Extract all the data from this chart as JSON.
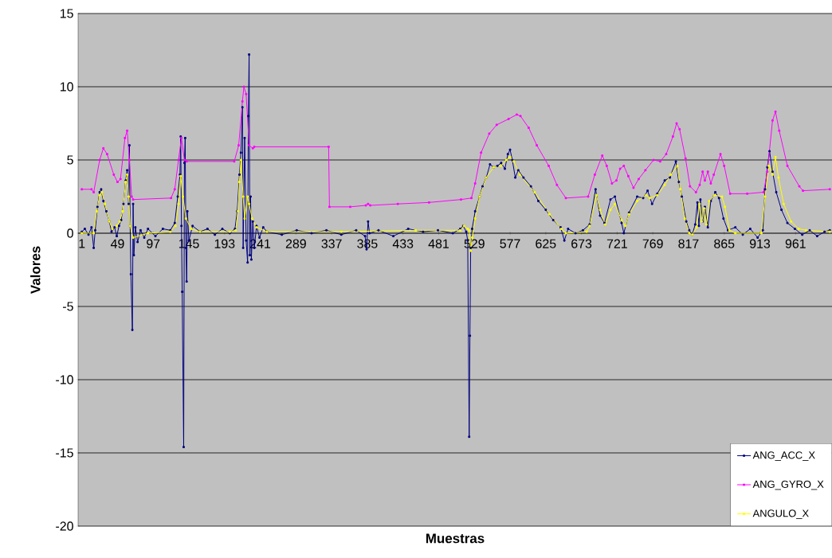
{
  "chart_data": {
    "type": "line",
    "xlabel": "Muestras",
    "ylabel": "Valores",
    "xlim": [
      -4,
      1010
    ],
    "ylim": [
      -20,
      15
    ],
    "xticks": [
      1,
      49,
      97,
      145,
      193,
      241,
      289,
      337,
      385,
      433,
      481,
      529,
      577,
      625,
      673,
      721,
      769,
      817,
      865,
      913,
      961
    ],
    "yticks": [
      -20,
      -15,
      -10,
      -5,
      0,
      5,
      10,
      15
    ],
    "grid": "y",
    "legend": "bottom right",
    "marker": "square",
    "series": [
      {
        "name": "ANG_ACC_X",
        "color": "#000080",
        "x": [
          1,
          5,
          10,
          14,
          17,
          19,
          22,
          25,
          27,
          30,
          34,
          38,
          41,
          45,
          48,
          51,
          54,
          57,
          60,
          62,
          64,
          65,
          66,
          67,
          69,
          70,
          71,
          73,
          76,
          80,
          85,
          90,
          100,
          110,
          120,
          126,
          130,
          133,
          134,
          135,
          136,
          138,
          139,
          140,
          141,
          142,
          143,
          145,
          150,
          160,
          170,
          180,
          190,
          200,
          207,
          210,
          213,
          215,
          217,
          218,
          220,
          222,
          224,
          225,
          226,
          227,
          228,
          229,
          231,
          233,
          236,
          240,
          245,
          250,
          270,
          290,
          310,
          330,
          350,
          370,
          382,
          384,
          386,
          388,
          400,
          420,
          440,
          460,
          480,
          500,
          510,
          514,
          518,
          520,
          522,
          523,
          524,
          526,
          530,
          536,
          540,
          545,
          550,
          555,
          560,
          565,
          570,
          574,
          577,
          580,
          584,
          588,
          595,
          605,
          615,
          625,
          635,
          645,
          650,
          655,
          665,
          675,
          684,
          692,
          698,
          704,
          712,
          718,
          727,
          730,
          737,
          748,
          756,
          762,
          768,
          775,
          785,
          792,
          800,
          804,
          808,
          814,
          818,
          822,
          826,
          829,
          831,
          833,
          836,
          839,
          843,
          847,
          853,
          858,
          864,
          870,
          880,
          890,
          900,
          910,
          917,
          920,
          923,
          926,
          930,
          935,
          942,
          950,
          960,
          970,
          980,
          990,
          1000,
          1007
        ],
        "values": [
          0.1,
          0.3,
          -0.1,
          0.4,
          -1.0,
          0.2,
          1.8,
          2.8,
          3.0,
          2.2,
          1.5,
          0.8,
          0.1,
          0.4,
          -0.2,
          0.5,
          0.9,
          2.0,
          3.6,
          4.3,
          2.0,
          6.0,
          0.5,
          -2.8,
          -6.6,
          2.0,
          -1.5,
          0.4,
          -0.6,
          0.2,
          -0.3,
          0.3,
          -0.2,
          0.3,
          0.2,
          0.7,
          2.5,
          4.0,
          6.6,
          0.5,
          -4.0,
          -14.6,
          4.8,
          6.5,
          -1.0,
          -3.3,
          1.5,
          -0.5,
          0.5,
          0.1,
          0.3,
          -0.1,
          0.3,
          0.0,
          0.3,
          1.5,
          4.0,
          5.5,
          8.6,
          -1.0,
          6.5,
          -0.5,
          -2.0,
          8.0,
          12.2,
          -1.5,
          2.5,
          -1.8,
          0.8,
          -1.0,
          0.5,
          -0.3,
          0.4,
          0.1,
          -0.1,
          0.2,
          0.0,
          0.2,
          -0.1,
          0.2,
          -0.2,
          -1.1,
          0.8,
          0.0,
          0.2,
          -0.2,
          0.3,
          0.1,
          0.2,
          0.0,
          0.3,
          0.5,
          0.1,
          -0.5,
          -13.9,
          -7.0,
          -1.0,
          0.3,
          1.5,
          2.5,
          3.2,
          3.8,
          4.7,
          4.5,
          4.6,
          4.8,
          4.4,
          5.4,
          5.7,
          5.0,
          3.8,
          4.3,
          3.8,
          3.2,
          2.2,
          1.6,
          0.9,
          0.4,
          -0.5,
          0.3,
          0.0,
          0.2,
          0.6,
          3.0,
          1.2,
          0.7,
          2.3,
          2.5,
          0.7,
          0.0,
          1.4,
          2.5,
          2.4,
          2.9,
          2.0,
          2.7,
          3.6,
          3.8,
          4.9,
          3.5,
          2.5,
          0.8,
          0.2,
          -0.1,
          0.6,
          2.1,
          0.5,
          2.3,
          0.8,
          1.8,
          0.4,
          2.2,
          2.8,
          2.4,
          1.0,
          0.2,
          0.4,
          -0.1,
          0.3,
          -0.3,
          0.2,
          3.0,
          4.5,
          5.6,
          4.2,
          2.8,
          1.6,
          0.7,
          0.3,
          -0.1,
          0.2,
          -0.2,
          0.1,
          0.2
        ]
      },
      {
        "name": "ANG_GYRO_X",
        "color": "#ff00ff",
        "x": [
          1,
          14,
          17,
          25,
          30,
          35,
          44,
          49,
          53,
          59,
          62,
          65,
          68,
          70,
          121,
          126,
          131,
          135,
          139,
          142,
          206,
          212,
          217,
          219,
          222,
          226,
          231,
          233,
          333,
          334,
          362,
          383,
          386,
          389,
          426,
          468,
          511,
          525,
          530,
          538,
          549,
          559,
          575,
          586,
          591,
          602,
          613,
          629,
          640,
          652,
          682,
          691,
          701,
          707,
          714,
          720,
          725,
          730,
          736,
          743,
          750,
          759,
          770,
          779,
          787,
          796,
          801,
          805,
          813,
          819,
          827,
          832,
          836,
          839,
          843,
          847,
          851,
          860,
          865,
          873,
          896,
          918,
          923,
          930,
          934,
          939,
          950,
          966,
          971,
          1007
        ],
        "values": [
          3.0,
          3.0,
          2.8,
          5.0,
          5.8,
          5.4,
          4.0,
          3.5,
          3.7,
          6.5,
          7.0,
          5.0,
          2.5,
          2.3,
          2.4,
          3.0,
          5.0,
          6.5,
          5.0,
          4.9,
          4.9,
          6.0,
          9.0,
          10.0,
          9.5,
          6.0,
          5.8,
          5.9,
          5.9,
          1.8,
          1.8,
          1.9,
          2.0,
          1.9,
          2.0,
          2.1,
          2.3,
          2.4,
          3.4,
          5.5,
          6.8,
          7.4,
          7.8,
          8.1,
          8.0,
          7.2,
          6.0,
          4.6,
          3.3,
          2.4,
          2.5,
          4.0,
          5.3,
          4.6,
          3.4,
          3.6,
          4.4,
          4.6,
          3.9,
          3.1,
          3.7,
          4.3,
          5.0,
          4.9,
          5.4,
          6.6,
          7.5,
          7.1,
          5.1,
          3.2,
          2.8,
          3.3,
          4.2,
          3.6,
          4.2,
          3.4,
          4.0,
          5.4,
          4.6,
          2.7,
          2.7,
          2.8,
          4.2,
          7.7,
          8.3,
          7.0,
          4.6,
          3.2,
          2.9,
          3.0
        ]
      },
      {
        "name": "ANGULO_X",
        "color": "#ffff00",
        "x": [
          1,
          17,
          21,
          25,
          28,
          32,
          38,
          42,
          48,
          52,
          56,
          60,
          62,
          64,
          66,
          70,
          90,
          120,
          127,
          131,
          134,
          137,
          141,
          148,
          160,
          200,
          208,
          211,
          213,
          215,
          218,
          220,
          224,
          226,
          230,
          236,
          250,
          350,
          450,
          510,
          515,
          520,
          522,
          524,
          526,
          530,
          536,
          545,
          555,
          565,
          572,
          577,
          582,
          590,
          610,
          630,
          646,
          652,
          680,
          684,
          693,
          698,
          705,
          712,
          718,
          727,
          732,
          737,
          748,
          760,
          765,
          775,
          785,
          793,
          802,
          806,
          812,
          818,
          822,
          828,
          832,
          835,
          838,
          841,
          845,
          852,
          862,
          866,
          872,
          880,
          915,
          920,
          925,
          930,
          934,
          938,
          945,
          955,
          965,
          975,
          1007
        ],
        "values": [
          0,
          0,
          1.5,
          2.6,
          2.8,
          2.0,
          0.8,
          0.3,
          0.5,
          0.8,
          1.5,
          3.5,
          4.0,
          2.5,
          0.5,
          -0.3,
          0,
          0.1,
          0.5,
          2.0,
          3.9,
          2.5,
          1.0,
          0.3,
          0.1,
          0.1,
          0.2,
          1.5,
          3.5,
          5.0,
          2.5,
          1.0,
          2.5,
          2.0,
          1.0,
          0.4,
          0.1,
          0.1,
          0.2,
          0.2,
          0.5,
          0.3,
          0.2,
          -1.2,
          -0.3,
          1.0,
          2.5,
          3.8,
          4.5,
          4.6,
          5.0,
          5.2,
          4.9,
          4.0,
          2.8,
          1.3,
          0.3,
          0,
          0.1,
          0.5,
          2.6,
          1.6,
          0.6,
          1.6,
          2.0,
          0.9,
          0.5,
          1.3,
          2.2,
          2.6,
          2.4,
          2.6,
          3.3,
          4.0,
          4.6,
          3.0,
          1.0,
          0.0,
          -0.1,
          0.4,
          2.0,
          0.8,
          1.7,
          0.6,
          2.2,
          2.6,
          2.5,
          1.8,
          0.2,
          0,
          0,
          2.5,
          4.6,
          4.0,
          5.2,
          3.8,
          2.0,
          0.8,
          0.3,
          0.2,
          0.1
        ]
      }
    ]
  }
}
